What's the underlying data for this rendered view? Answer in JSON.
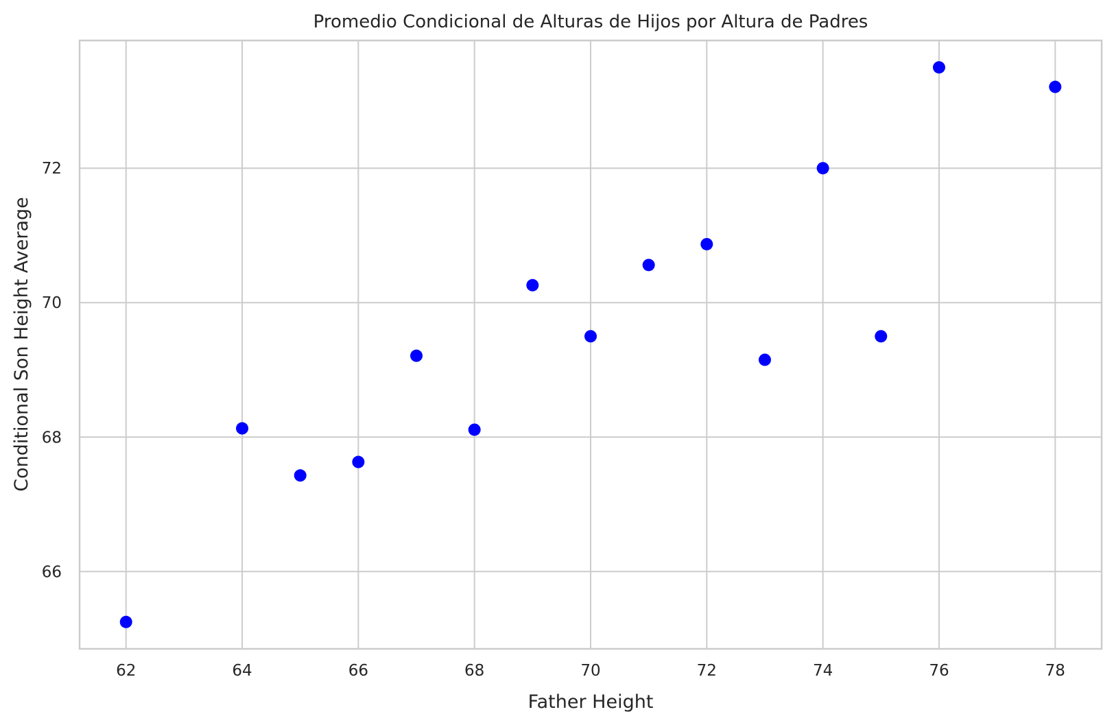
{
  "chart_data": {
    "type": "scatter",
    "title": "Promedio Condicional de Alturas de Hijos por Altura de Padres",
    "xlabel": "Father Height",
    "ylabel": "Conditional Son Height Average",
    "xlim": [
      61.2,
      78.8
    ],
    "ylim": [
      64.85,
      73.9
    ],
    "x_ticks": [
      62,
      64,
      66,
      68,
      70,
      72,
      74,
      76,
      78
    ],
    "y_ticks": [
      66,
      68,
      70,
      72
    ],
    "grid": true,
    "point_color": "#0000ff",
    "points": [
      {
        "x": 62,
        "y": 65.25
      },
      {
        "x": 64,
        "y": 68.13
      },
      {
        "x": 65,
        "y": 67.43
      },
      {
        "x": 66,
        "y": 67.63
      },
      {
        "x": 67,
        "y": 69.21
      },
      {
        "x": 68,
        "y": 68.11
      },
      {
        "x": 69,
        "y": 70.26
      },
      {
        "x": 70,
        "y": 69.5
      },
      {
        "x": 71,
        "y": 70.56
      },
      {
        "x": 72,
        "y": 70.87
      },
      {
        "x": 73,
        "y": 69.15
      },
      {
        "x": 74,
        "y": 72.0
      },
      {
        "x": 75,
        "y": 69.5
      },
      {
        "x": 76,
        "y": 73.5
      },
      {
        "x": 78,
        "y": 73.21
      }
    ]
  }
}
